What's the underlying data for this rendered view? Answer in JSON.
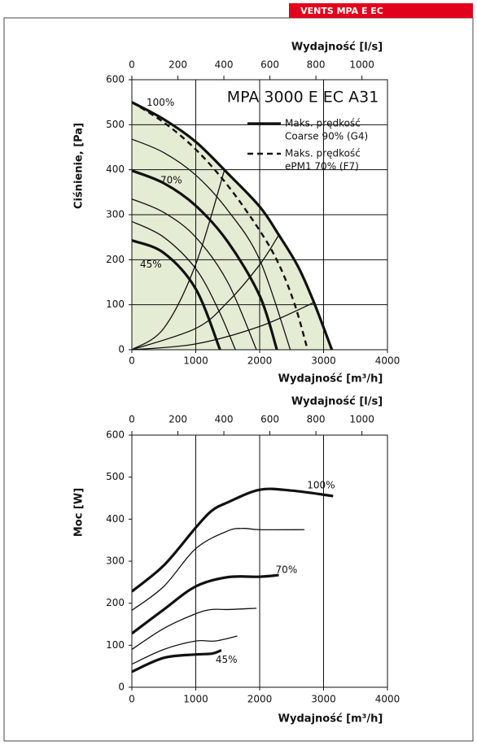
{
  "badge": "VENTS MPA E EC",
  "chart_data": [
    {
      "type": "line",
      "title": "MPA 3000 E EC A31",
      "x_label": "Wydajność [m³/h]",
      "x2_label": "Wydajność [l/s]",
      "y_label": "Ciśnienie, [Pa]",
      "xlim": [
        0,
        4000
      ],
      "xticks": [
        0,
        1000,
        2000,
        3000,
        4000
      ],
      "x2lim": [
        0,
        1111.1
      ],
      "x2ticks": [
        0,
        200,
        400,
        600,
        800,
        1000
      ],
      "ylim": [
        0,
        600
      ],
      "yticks": [
        0,
        100,
        200,
        300,
        400,
        500,
        600
      ],
      "grid": true,
      "fill_color": "#e4ecd4",
      "color": "#111111",
      "legend": [
        {
          "style": "thick",
          "lines": [
            "Maks. prędkość",
            "Coarse 90% (G4)"
          ]
        },
        {
          "style": "dashed",
          "lines": [
            "Maks. prędkość",
            "ePM1 70% (F7)"
          ]
        }
      ],
      "series": [
        {
          "label": "100%",
          "style": "thick",
          "fill": true,
          "x": [
            0,
            500,
            1000,
            1500,
            2000,
            2300,
            2600,
            2850,
            3130
          ],
          "values": [
            550,
            512,
            462,
            392,
            318,
            255,
            185,
            105,
            0
          ]
        },
        {
          "style": "dashed",
          "x": [
            0,
            500,
            1000,
            1500,
            2000,
            2300,
            2550,
            2750
          ],
          "values": [
            550,
            505,
            445,
            365,
            265,
            190,
            100,
            0
          ]
        },
        {
          "style": "thin",
          "x": [
            0,
            500,
            1000,
            1500,
            2000,
            2480
          ],
          "values": [
            468,
            438,
            388,
            310,
            200,
            0
          ]
        },
        {
          "label": "70%",
          "style": "thick",
          "x": [
            0,
            500,
            1000,
            1500,
            2000,
            2270
          ],
          "values": [
            398,
            370,
            320,
            240,
            120,
            0
          ]
        },
        {
          "style": "thin",
          "x": [
            0,
            500,
            1000,
            1500,
            1950
          ],
          "values": [
            335,
            305,
            250,
            150,
            0
          ]
        },
        {
          "style": "thin",
          "x": [
            0,
            500,
            1000,
            1350,
            1620
          ],
          "values": [
            285,
            250,
            180,
            90,
            0
          ]
        },
        {
          "label": "45%",
          "style": "thick",
          "x": [
            0,
            500,
            1000,
            1380
          ],
          "values": [
            243,
            215,
            135,
            0
          ]
        },
        {
          "style": "thin",
          "x": [
            0,
            500,
            1000,
            1450
          ],
          "values": [
            0,
            47.6,
            190,
            400
          ]
        },
        {
          "style": "thin",
          "x": [
            0,
            1000,
            1500,
            2000,
            2300
          ],
          "values": [
            0,
            47.3,
            106,
            189,
            255
          ]
        },
        {
          "style": "thin",
          "x": [
            0,
            1000,
            2000,
            2850
          ],
          "values": [
            0,
            12.9,
            51.7,
            105
          ]
        }
      ]
    },
    {
      "type": "line",
      "x_label": "Wydajność [m³/h]",
      "x2_label": "Wydajność [l/s]",
      "y_label": "Moc [W]",
      "xlim": [
        0,
        4000
      ],
      "xticks": [
        0,
        1000,
        2000,
        3000,
        4000
      ],
      "x2lim": [
        0,
        1111.1
      ],
      "x2ticks": [
        0,
        200,
        400,
        600,
        800,
        1000
      ],
      "ylim": [
        0,
        600
      ],
      "yticks": [
        0,
        100,
        200,
        300,
        400,
        500,
        600
      ],
      "grid": true,
      "color": "#111111",
      "series": [
        {
          "label": "100%",
          "style": "thick",
          "x": [
            0,
            500,
            1000,
            1250,
            1500,
            2000,
            2500,
            3150
          ],
          "values": [
            228,
            290,
            380,
            420,
            440,
            470,
            468,
            455
          ]
        },
        {
          "style": "thin",
          "x": [
            0,
            500,
            1000,
            1500,
            1750,
            2000,
            2700
          ],
          "values": [
            183,
            240,
            330,
            372,
            378,
            375,
            375
          ]
        },
        {
          "label": "70%",
          "style": "thick",
          "x": [
            0,
            500,
            1000,
            1500,
            2000,
            2300
          ],
          "values": [
            128,
            185,
            240,
            262,
            263,
            267
          ]
        },
        {
          "style": "thin",
          "x": [
            0,
            500,
            1000,
            1250,
            1500,
            1950
          ],
          "values": [
            90,
            140,
            175,
            185,
            185,
            188
          ]
        },
        {
          "style": "thin",
          "x": [
            0,
            500,
            1000,
            1300,
            1650
          ],
          "values": [
            55,
            90,
            110,
            110,
            122
          ]
        },
        {
          "label": "45%",
          "style": "thick",
          "x": [
            0,
            500,
            1000,
            1250,
            1400
          ],
          "values": [
            37,
            70,
            78,
            80,
            88
          ]
        }
      ]
    }
  ]
}
